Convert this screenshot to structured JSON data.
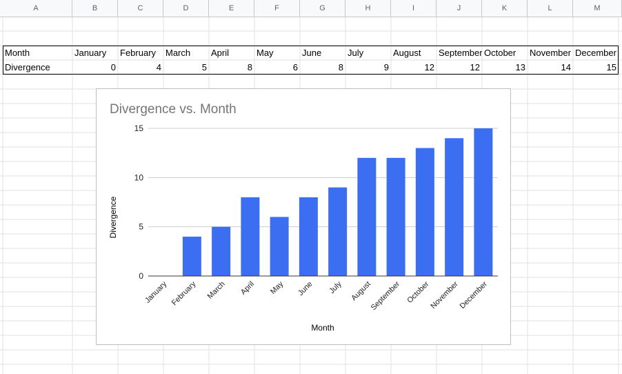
{
  "sheet": {
    "columns": [
      "A",
      "B",
      "C",
      "D",
      "E",
      "F",
      "G",
      "H",
      "I",
      "J",
      "K",
      "L",
      "M"
    ],
    "rows": [
      [
        "Month",
        "January",
        "February",
        "March",
        "April",
        "May",
        "June",
        "July",
        "August",
        "September",
        "October",
        "November",
        "December"
      ],
      [
        "Divergence",
        "0",
        "4",
        "5",
        "8",
        "6",
        "8",
        "9",
        "12",
        "12",
        "13",
        "14",
        "15"
      ]
    ]
  },
  "chart_data": {
    "type": "bar",
    "title": "Divergence vs. Month",
    "xlabel": "Month",
    "ylabel": "Divergence",
    "categories": [
      "January",
      "February",
      "March",
      "April",
      "May",
      "June",
      "July",
      "August",
      "September",
      "October",
      "November",
      "December"
    ],
    "values": [
      0,
      4,
      5,
      8,
      6,
      8,
      9,
      12,
      12,
      13,
      14,
      15
    ],
    "ylim": [
      0,
      15
    ],
    "yticks": [
      "0",
      "5",
      "10",
      "15"
    ],
    "bar_color": "#3b6ef0",
    "gridlines": true,
    "legend": "none"
  }
}
